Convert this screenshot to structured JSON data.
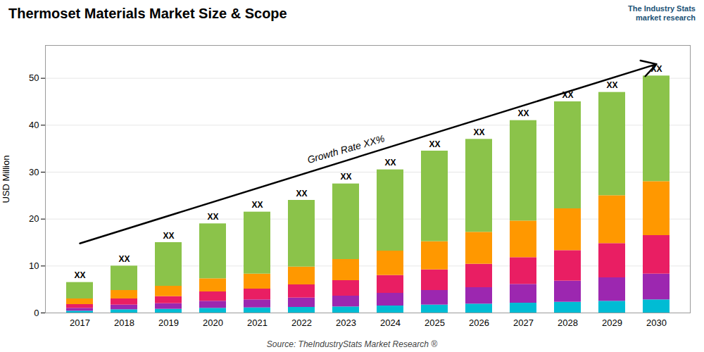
{
  "chart_data": {
    "type": "bar",
    "stacked": true,
    "title": "Thermoset Materials Market Size & Scope",
    "ylabel": "USD Million",
    "source": "Source: TheIndustryStats Market Research ®",
    "logo": "The Industry Stats\nmarket research",
    "growth_label": "Growth Rate XX%",
    "categories": [
      "2017",
      "2018",
      "2019",
      "2020",
      "2021",
      "2022",
      "2023",
      "2024",
      "2025",
      "2026",
      "2027",
      "2028",
      "2029",
      "2030"
    ],
    "series": [
      {
        "color": "#00bcd4",
        "values": [
          0.4,
          0.7,
          0.8,
          1.0,
          1.1,
          1.2,
          1.3,
          1.5,
          1.7,
          1.9,
          2.1,
          2.3,
          2.5,
          2.8
        ]
      },
      {
        "color": "#9c27b0",
        "values": [
          0.6,
          1.0,
          1.2,
          1.5,
          1.7,
          2.0,
          2.3,
          2.7,
          3.1,
          3.5,
          4.0,
          4.5,
          5.0,
          5.5
        ]
      },
      {
        "color": "#e91e63",
        "values": [
          0.8,
          1.3,
          1.5,
          2.0,
          2.3,
          2.8,
          3.3,
          3.8,
          4.4,
          5.0,
          5.7,
          6.5,
          7.3,
          8.2
        ]
      },
      {
        "color": "#ff9800",
        "values": [
          1.2,
          1.8,
          2.2,
          2.8,
          3.2,
          3.8,
          4.5,
          5.2,
          6.0,
          6.8,
          7.8,
          8.9,
          10.2,
          11.5
        ]
      },
      {
        "color": "#8bc34a",
        "values": [
          3.5,
          5.2,
          9.3,
          11.7,
          13.2,
          14.2,
          16.1,
          17.3,
          19.3,
          19.8,
          21.4,
          22.8,
          22.0,
          22.5
        ]
      }
    ],
    "top_labels": [
      "XX",
      "XX",
      "XX",
      "XX",
      "XX",
      "XX",
      "XX",
      "XX",
      "XX",
      "XX",
      "XX",
      "XX",
      "XX",
      "XX"
    ],
    "ylim": [
      0,
      57
    ],
    "yticks": [
      0,
      10,
      20,
      30,
      40,
      50
    ],
    "grid": true
  }
}
